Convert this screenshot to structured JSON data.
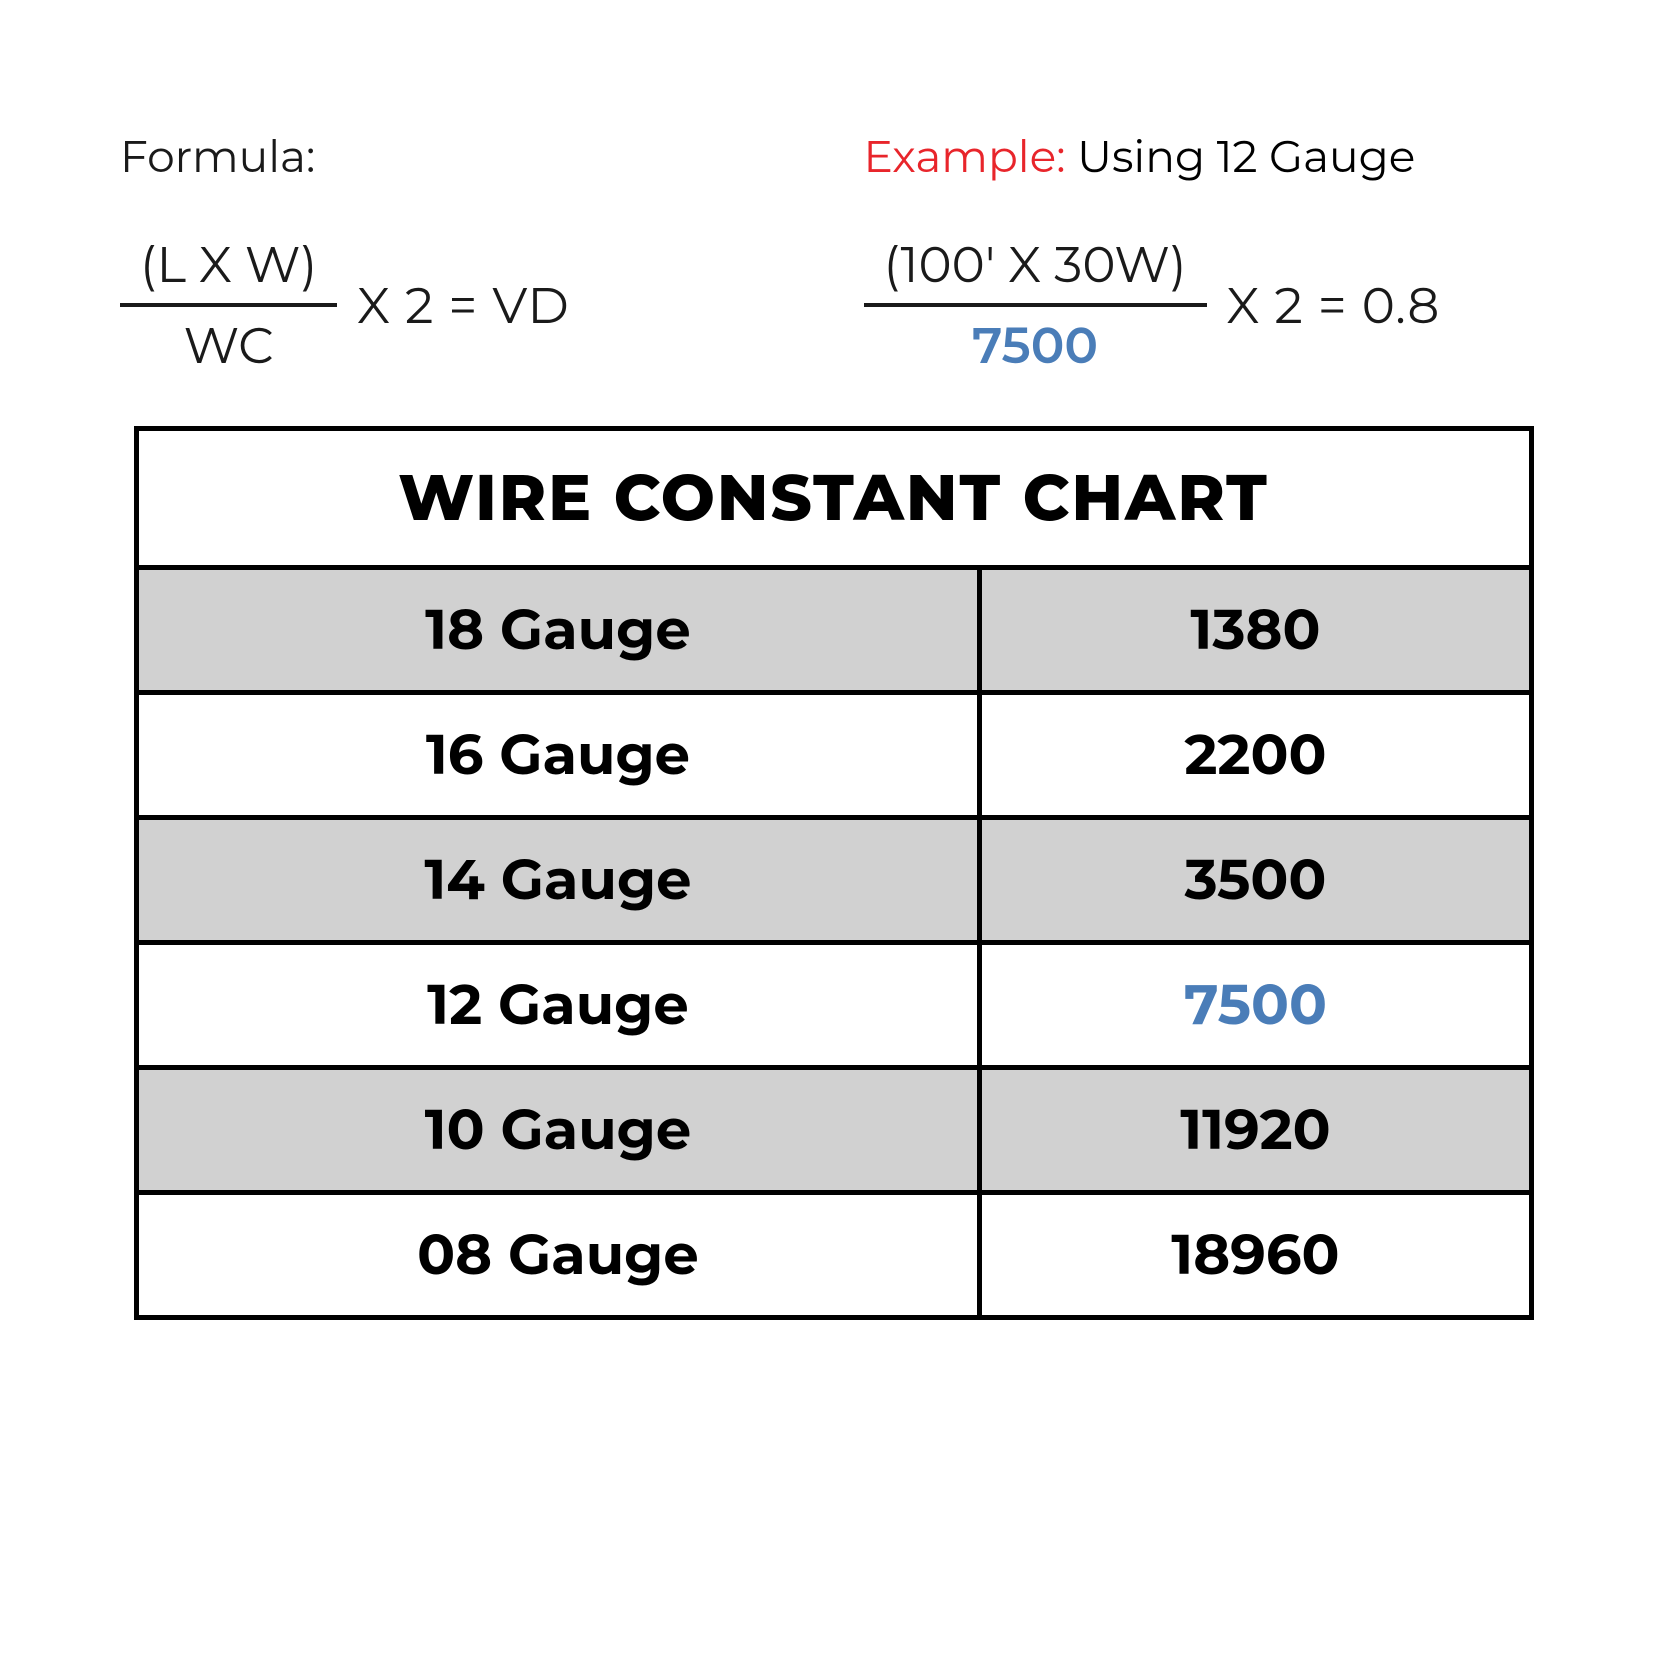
{
  "colors": {
    "text": "#1a1a1a",
    "red": "#e8252b",
    "blue": "#4a7db8",
    "border": "#000000",
    "shaded": "#d1d1d1",
    "white": "#ffffff"
  },
  "formula": {
    "label": "Formula:",
    "numerator": "(L X W)",
    "denominator": "WC",
    "rest": "X 2  = VD"
  },
  "example": {
    "label_prefix": "Example:",
    "label_suffix": " Using 12 Gauge",
    "numerator": "(100' X 30W)",
    "denominator": "7500",
    "rest": "X 2  = 0.8"
  },
  "table": {
    "title": "WIRE CONSTANT CHART",
    "rows": [
      {
        "gauge": "18 Gauge",
        "value": "1380",
        "shaded": true,
        "highlight": false
      },
      {
        "gauge": "16 Gauge",
        "value": "2200",
        "shaded": false,
        "highlight": false
      },
      {
        "gauge": "14 Gauge",
        "value": "3500",
        "shaded": true,
        "highlight": false
      },
      {
        "gauge": "12 Gauge",
        "value": "7500",
        "shaded": false,
        "highlight": true
      },
      {
        "gauge": "10 Gauge",
        "value": "11920",
        "shaded": true,
        "highlight": false
      },
      {
        "gauge": "08 Gauge",
        "value": "18960",
        "shaded": false,
        "highlight": false
      }
    ]
  }
}
